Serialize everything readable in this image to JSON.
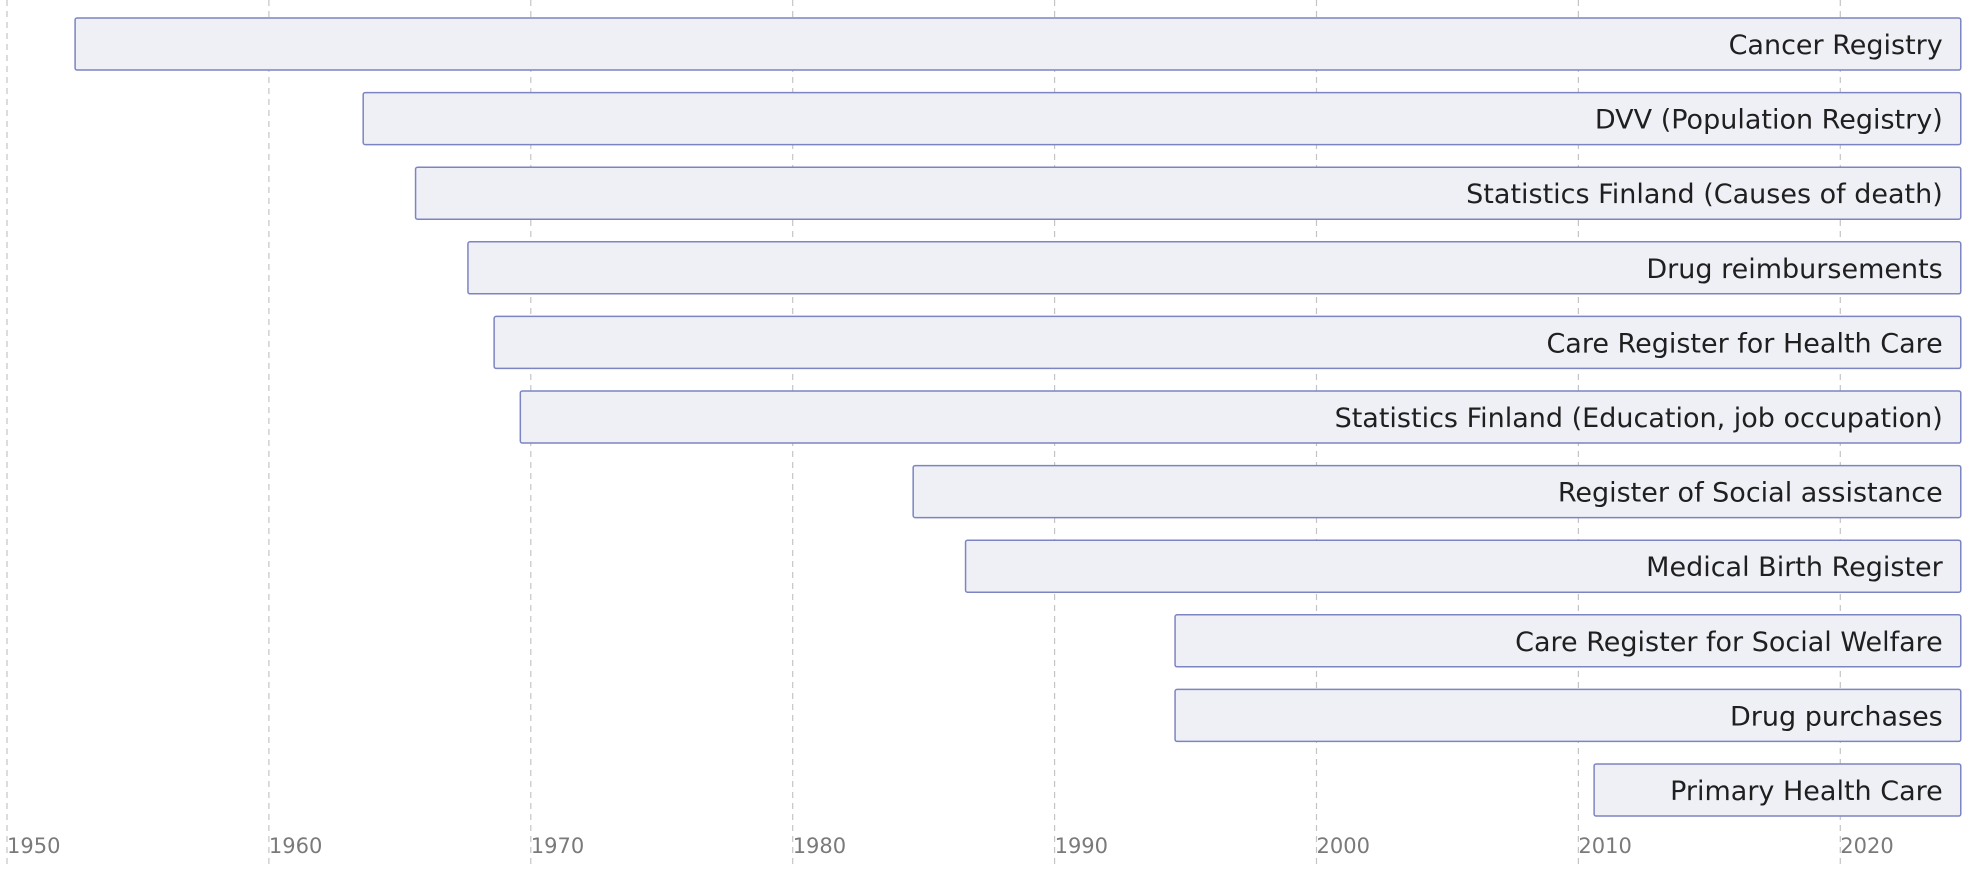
{
  "chart_data": {
    "type": "bar",
    "orientation": "horizontal",
    "title": "",
    "xlabel": "",
    "ylabel": "",
    "xlim": [
      1950,
      2024.8
    ],
    "x_ticks": [
      1950,
      1960,
      1970,
      1980,
      1990,
      2000,
      2010,
      2020
    ],
    "grid": "vertical dashed",
    "legend": "none",
    "bars": [
      {
        "label": "Cancer Registry",
        "start": 1952.6,
        "end": 2024.6
      },
      {
        "label": "DVV (Population Registry)",
        "start": 1963.6,
        "end": 2024.6
      },
      {
        "label": "Statistics Finland (Causes of death)",
        "start": 1965.6,
        "end": 2024.6
      },
      {
        "label": "Drug reimbursements",
        "start": 1967.6,
        "end": 2024.6
      },
      {
        "label": "Care Register for Health Care",
        "start": 1968.6,
        "end": 2024.6
      },
      {
        "label": "Statistics Finland (Education, job occupation)",
        "start": 1969.6,
        "end": 2024.6
      },
      {
        "label": "Register of Social assistance",
        "start": 1984.6,
        "end": 2024.6
      },
      {
        "label": "Medical Birth Register",
        "start": 1986.6,
        "end": 2024.6
      },
      {
        "label": "Care Register for Social Welfare",
        "start": 1994.6,
        "end": 2024.6
      },
      {
        "label": "Drug purchases",
        "start": 1994.6,
        "end": 2024.6
      },
      {
        "label": "Primary Health Care",
        "start": 2010.6,
        "end": 2024.6
      }
    ],
    "colors": {
      "bar_fill": "#eff0f6",
      "bar_stroke": "#7c84c2",
      "label": "#1f1f1f",
      "tick": "#7a7a7a",
      "grid": "#c4c4c4"
    }
  }
}
